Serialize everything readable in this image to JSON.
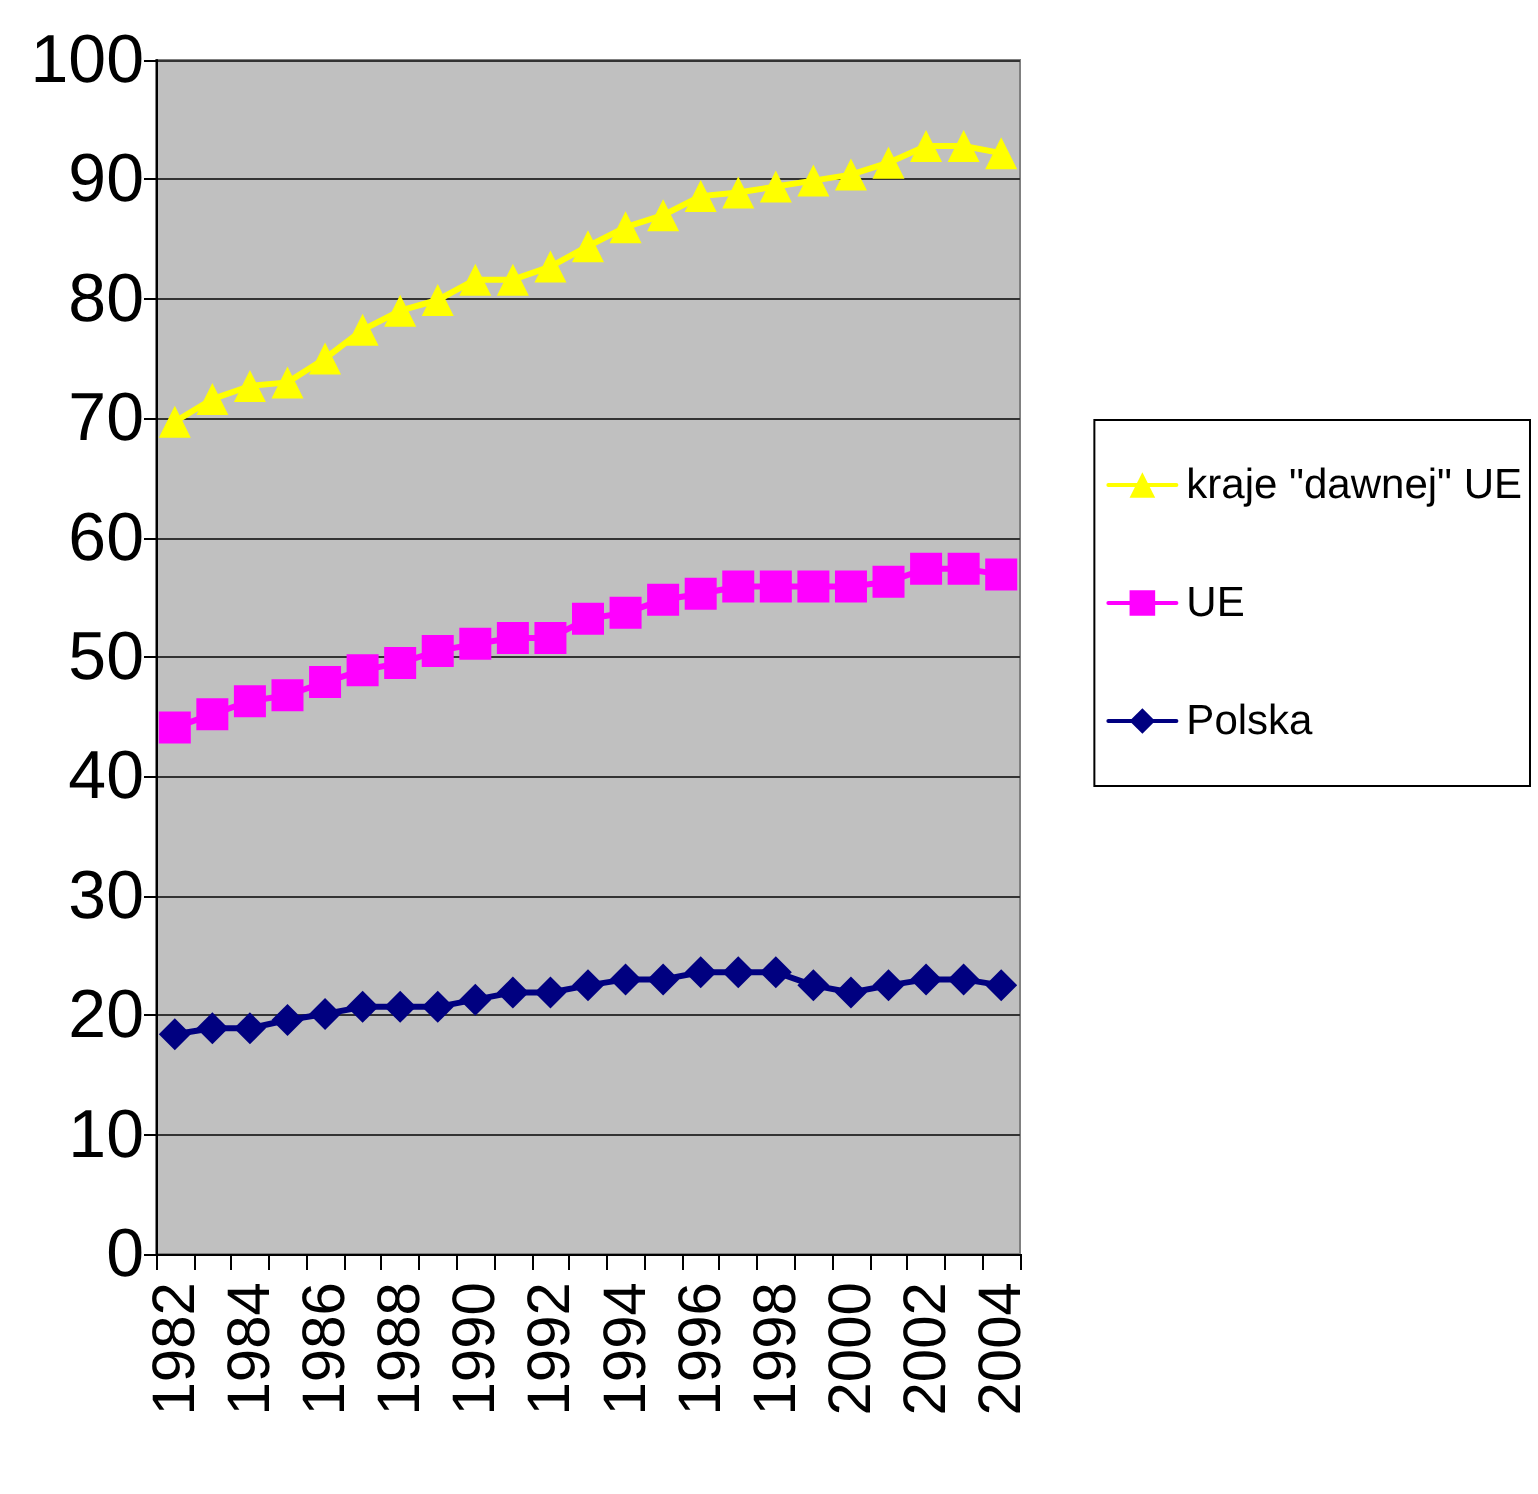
{
  "chart_data": {
    "type": "line",
    "categories": [
      "1982",
      null,
      "1984",
      null,
      "1986",
      null,
      "1988",
      null,
      "1990",
      null,
      "1992",
      null,
      "1994",
      null,
      "1996",
      null,
      "1998",
      null,
      "2000",
      null,
      "2002",
      null,
      "2004"
    ],
    "series": [
      {
        "name": "kraje \"dawnej\" UE",
        "color": "#ffff00",
        "marker": "triangle",
        "values": [
          69.7,
          71.6,
          72.7,
          73,
          75,
          77.4,
          79,
          79.9,
          81.6,
          81.6,
          82.7,
          84.4,
          86,
          87,
          88.6,
          88.9,
          89.4,
          89.9,
          90.4,
          91.4,
          92.8,
          92.8,
          92.2
        ]
      },
      {
        "name": "UE",
        "color": "#ff00ff",
        "marker": "square",
        "values": [
          44.1,
          45.2,
          46.3,
          46.8,
          47.9,
          48.9,
          49.5,
          50.5,
          51.1,
          51.6,
          51.6,
          53.2,
          53.7,
          54.8,
          55.3,
          55.9,
          55.9,
          55.9,
          55.9,
          56.3,
          57.4,
          57.4,
          56.9
        ]
      },
      {
        "name": "Polska",
        "color": "#000080",
        "marker": "diamond",
        "values": [
          18.4,
          18.9,
          18.9,
          19.6,
          20.1,
          20.7,
          20.7,
          20.7,
          21.3,
          21.9,
          21.9,
          22.5,
          23,
          23,
          23.6,
          23.6,
          23.6,
          22.5,
          21.9,
          22.5,
          23,
          23,
          22.5
        ]
      }
    ],
    "ylim": [
      0,
      100
    ],
    "yticks": [
      0,
      10,
      20,
      30,
      40,
      50,
      60,
      70,
      80,
      90,
      100
    ],
    "grid": "y",
    "legend": "right",
    "line_style": "solid"
  }
}
